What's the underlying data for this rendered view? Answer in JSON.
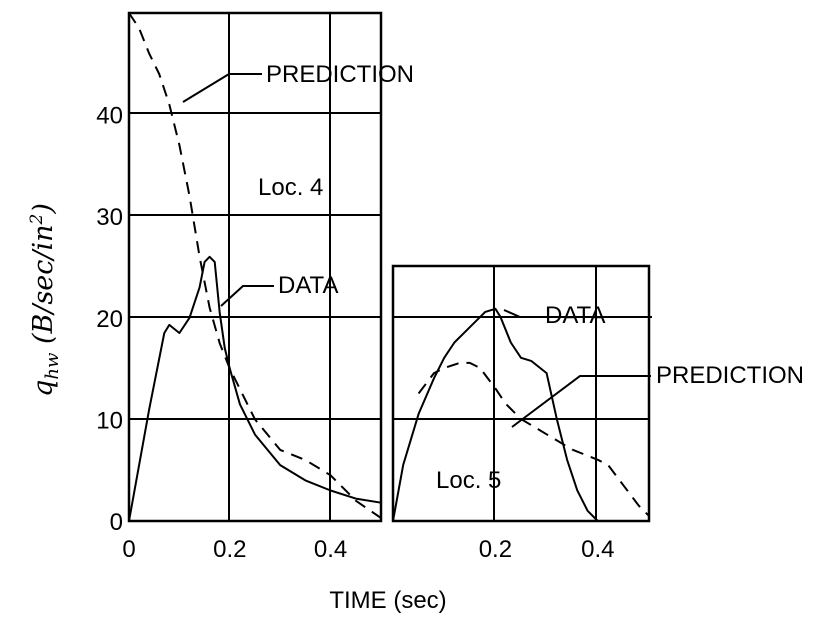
{
  "chart_data": [
    {
      "type": "line",
      "panel": "Loc. 4",
      "xlim": [
        0,
        0.5
      ],
      "ylim": [
        0,
        50
      ],
      "xticks": [
        "0",
        "0.2",
        "0.4"
      ],
      "yticks": [
        "0",
        "10",
        "20",
        "30",
        "40"
      ],
      "ylabel": "q_hw (B/sec/in²)",
      "grid": true,
      "series": [
        {
          "name": "DATA",
          "style": "solid",
          "x": [
            0.0,
            0.04,
            0.07,
            0.08,
            0.09,
            0.1,
            0.12,
            0.14,
            0.15,
            0.16,
            0.17,
            0.18,
            0.19,
            0.2,
            0.22,
            0.25,
            0.3,
            0.35,
            0.4,
            0.45,
            0.5
          ],
          "y": [
            0.0,
            11.0,
            18.5,
            19.3,
            18.9,
            18.5,
            20.0,
            23.0,
            25.5,
            26.0,
            25.5,
            20.5,
            17.0,
            15.0,
            11.5,
            8.5,
            5.5,
            4.0,
            3.0,
            2.2,
            1.8
          ]
        },
        {
          "name": "PREDICTION",
          "style": "dashed",
          "x": [
            0.0,
            0.02,
            0.04,
            0.06,
            0.08,
            0.1,
            0.12,
            0.14,
            0.16,
            0.18,
            0.2,
            0.25,
            0.3,
            0.35,
            0.4,
            0.45,
            0.5
          ],
          "y": [
            50.0,
            48.5,
            46.0,
            44.0,
            41.0,
            37.0,
            32.0,
            26.0,
            21.0,
            17.5,
            15.0,
            10.0,
            7.0,
            6.0,
            4.5,
            2.0,
            0.3
          ]
        }
      ],
      "annotations": {
        "prediction_label": "PREDICTION",
        "data_label": "DATA",
        "location_label": "Loc. 4"
      }
    },
    {
      "type": "line",
      "panel": "Loc. 5",
      "xlim": [
        0,
        0.5
      ],
      "ylim": [
        0,
        25
      ],
      "xticks": [
        "0.2",
        "0.4"
      ],
      "xlabel": "TIME (sec)",
      "grid": true,
      "series": [
        {
          "name": "DATA",
          "style": "solid",
          "x": [
            0.0,
            0.02,
            0.05,
            0.08,
            0.1,
            0.12,
            0.15,
            0.18,
            0.2,
            0.21,
            0.23,
            0.25,
            0.27,
            0.3,
            0.32,
            0.34,
            0.36,
            0.38,
            0.4
          ],
          "y": [
            0.0,
            5.5,
            10.5,
            14.0,
            16.0,
            17.5,
            19.0,
            20.5,
            20.8,
            20.0,
            17.5,
            16.0,
            15.7,
            14.5,
            10.0,
            6.0,
            3.0,
            1.0,
            0.0
          ]
        },
        {
          "name": "PREDICTION",
          "style": "dashed",
          "x": [
            0.05,
            0.08,
            0.1,
            0.13,
            0.15,
            0.17,
            0.2,
            0.22,
            0.25,
            0.3,
            0.35,
            0.4,
            0.42,
            0.45,
            0.48,
            0.5
          ],
          "y": [
            12.5,
            14.5,
            15.0,
            15.5,
            15.5,
            15.0,
            13.0,
            11.5,
            10.0,
            8.5,
            7.0,
            6.0,
            5.5,
            3.5,
            1.5,
            0.5
          ]
        }
      ],
      "annotations": {
        "data_label": "DATA",
        "prediction_label": "PREDICTION",
        "location_label": "Loc. 5"
      }
    }
  ]
}
